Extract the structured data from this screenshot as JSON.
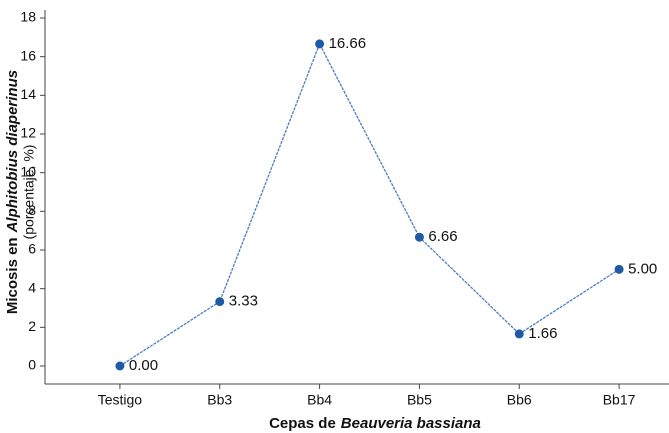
{
  "chart_data": {
    "type": "line",
    "x_label": [
      "Cepas de",
      "Beauveria bassiana"
    ],
    "y_label": [
      "Micosis en",
      "Alphitobius diaperinus",
      "(porcentaje, %)"
    ],
    "categories": [
      "Testigo",
      "Bb3",
      "Bb4",
      "Bb5",
      "Bb6",
      "Bb17"
    ],
    "values": [
      0,
      3.33,
      16.66,
      6.66,
      1.66,
      5
    ],
    "value_labels": [
      "0.00",
      "3.33",
      "16.66",
      "6.66",
      "1.66",
      "5.00"
    ],
    "color": "#1f5aa6",
    "line_color": "#4a7dc4",
    "ylim": [
      0,
      18
    ],
    "yticks": [
      0,
      2,
      4,
      6,
      8,
      10,
      12,
      14,
      16,
      18
    ]
  }
}
